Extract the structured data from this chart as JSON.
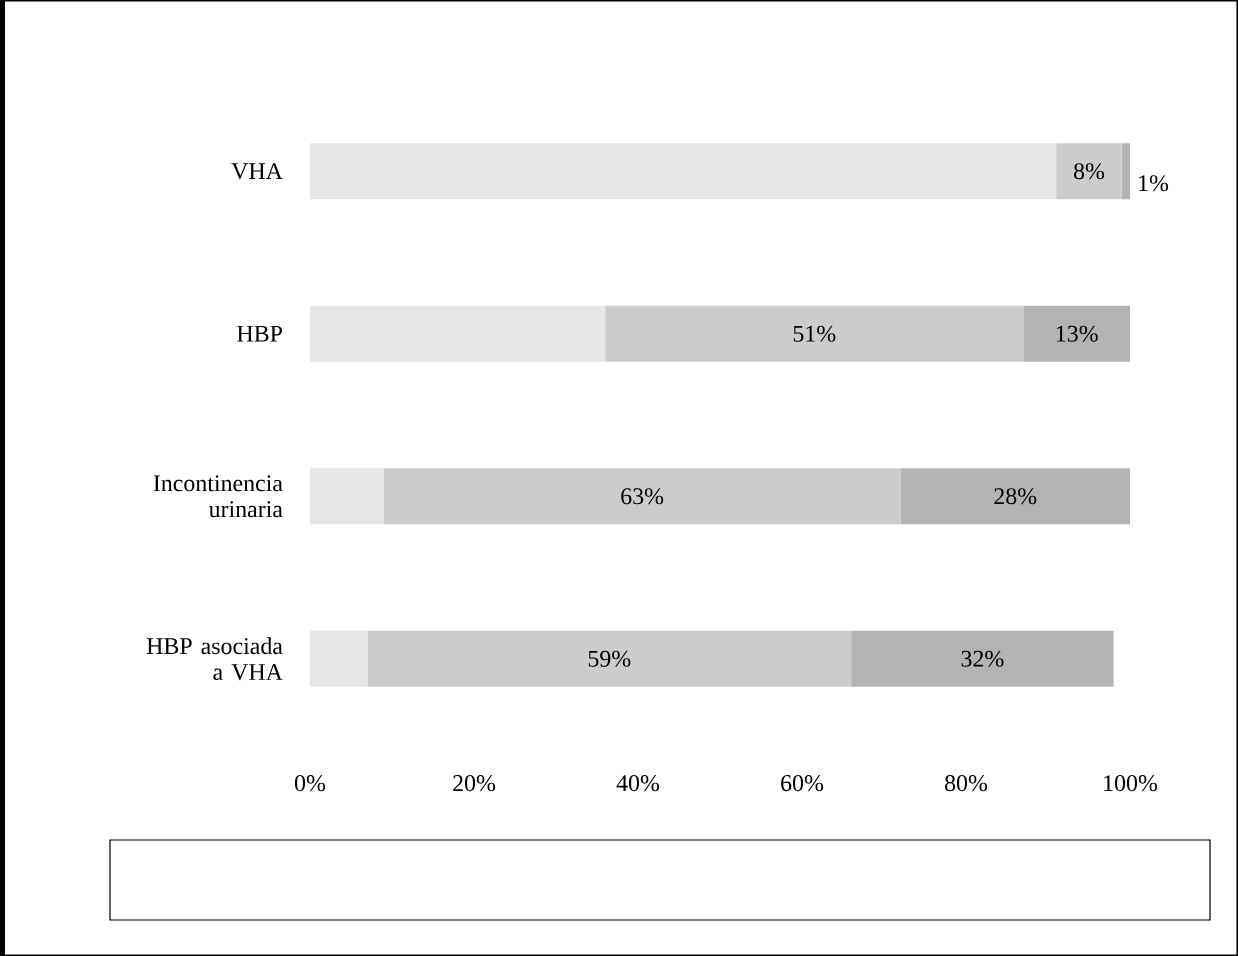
{
  "chart_data": {
    "type": "bar",
    "orientation": "horizontal",
    "stacked": true,
    "categories": [
      "VHA",
      "HBP",
      "Incontinencia urinaria",
      "HBP asociada a VHA"
    ],
    "series": [
      {
        "color": "#e6e6e6",
        "values": [
          91,
          36,
          9,
          7
        ],
        "value_labels": [
          null,
          null,
          null,
          null
        ]
      },
      {
        "color": "#cccccc",
        "values": [
          8,
          51,
          63,
          59
        ],
        "value_labels": [
          "8%",
          "51%",
          "63%",
          "59%"
        ]
      },
      {
        "color": "#b3b3b3",
        "values": [
          1,
          13,
          28,
          32
        ],
        "value_labels": [
          "1%",
          "13%",
          "28%",
          "32%"
        ]
      }
    ],
    "xlim": [
      0,
      100
    ],
    "xticks": [
      {
        "value": 0,
        "label": "0%"
      },
      {
        "value": 20,
        "label": "20%"
      },
      {
        "value": 40,
        "label": "40%"
      },
      {
        "value": 60,
        "label": "60%"
      },
      {
        "value": 80,
        "label": "80%"
      },
      {
        "value": 100,
        "label": "100%"
      }
    ]
  }
}
